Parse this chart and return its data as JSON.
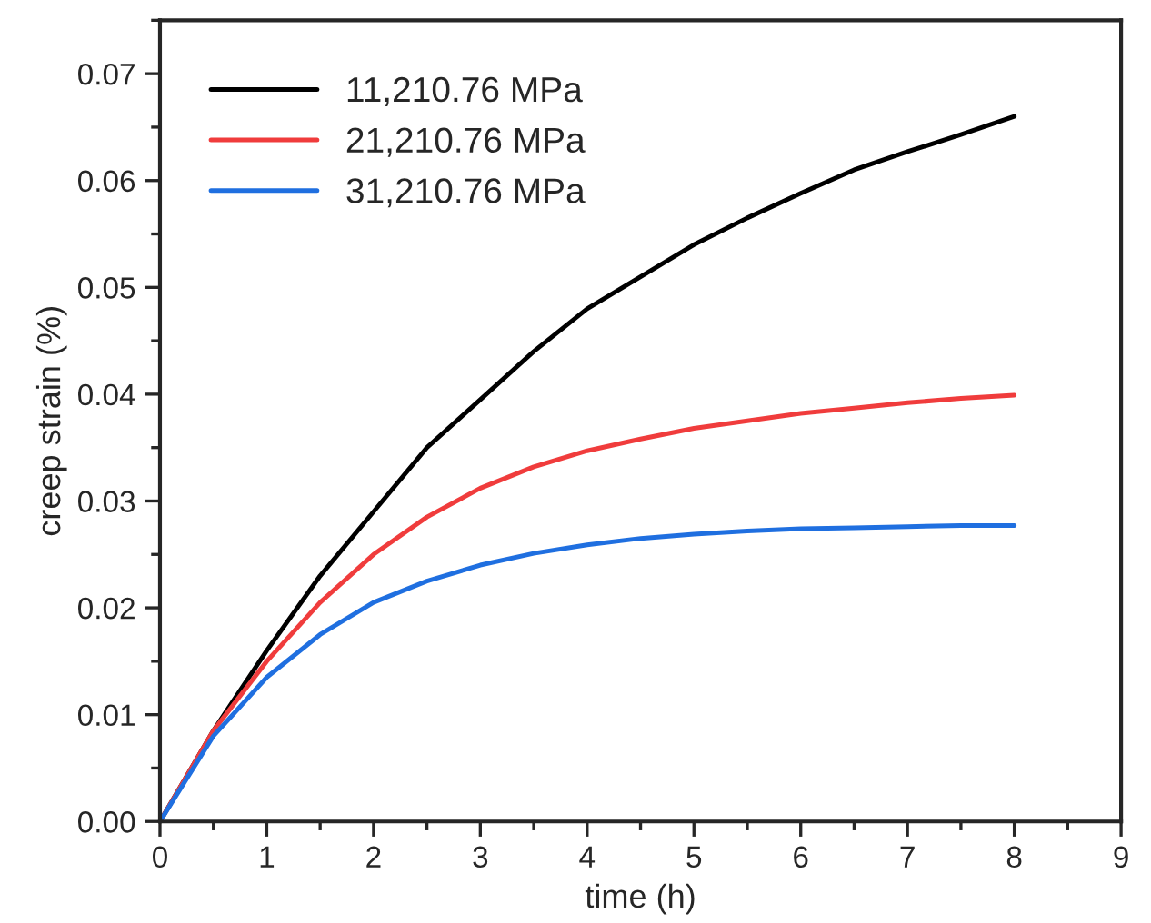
{
  "chart_data": {
    "type": "line",
    "xlabel": "time (h)",
    "ylabel": "creep strain (%)",
    "x": [
      0,
      0.5,
      1,
      1.5,
      2,
      2.5,
      3,
      3.5,
      4,
      4.5,
      5,
      5.5,
      6,
      6.5,
      7,
      7.5,
      8
    ],
    "series": [
      {
        "name": "11,210.76 MPa",
        "color": "#000000",
        "values": [
          0,
          0.0085,
          0.016,
          0.023,
          0.029,
          0.035,
          0.0395,
          0.044,
          0.048,
          0.051,
          0.054,
          0.0565,
          0.0588,
          0.061,
          0.0627,
          0.0643,
          0.066
        ]
      },
      {
        "name": "21,210.76 MPa",
        "color": "#f03c3c",
        "values": [
          0,
          0.0085,
          0.015,
          0.0205,
          0.025,
          0.0285,
          0.0312,
          0.0332,
          0.0347,
          0.0358,
          0.0368,
          0.0375,
          0.0382,
          0.0387,
          0.0392,
          0.0396,
          0.0399
        ]
      },
      {
        "name": "31,210.76 MPa",
        "color": "#1f6fe0",
        "values": [
          0,
          0.008,
          0.0135,
          0.0175,
          0.0205,
          0.0225,
          0.024,
          0.0251,
          0.0259,
          0.0265,
          0.0269,
          0.0272,
          0.0274,
          0.0275,
          0.0276,
          0.0277,
          0.0277
        ]
      }
    ],
    "xlim": [
      0,
      9
    ],
    "xticks": [
      0,
      1,
      2,
      3,
      4,
      5,
      6,
      7,
      8,
      9
    ],
    "ylim": [
      0,
      0.075
    ],
    "yticks": [
      {
        "value": 0,
        "label": "0.00"
      },
      {
        "value": 0.01,
        "label": "0.01"
      },
      {
        "value": 0.02,
        "label": "0.02"
      },
      {
        "value": 0.03,
        "label": "0.03"
      },
      {
        "value": 0.04,
        "label": "0.04"
      },
      {
        "value": 0.05,
        "label": "0.05"
      },
      {
        "value": 0.06,
        "label": "0.06"
      },
      {
        "value": 0.07,
        "label": "0.07"
      }
    ],
    "legend": "top left",
    "grid": false,
    "marker": "none",
    "line_style": "solid"
  }
}
